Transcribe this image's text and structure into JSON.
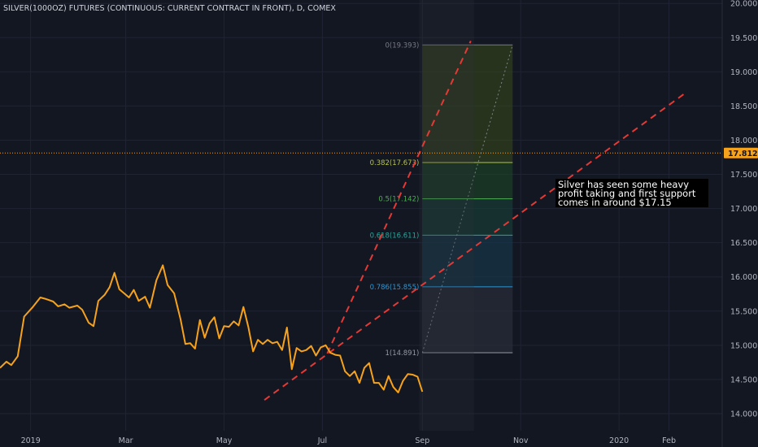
{
  "chart_data": {
    "type": "line",
    "title": "SILVER(1000OZ) FUTURES (CONTINUOUS: CURRENT CONTRACT IN FRONT), D, COMEX",
    "y_ticks": [
      "14.000",
      "14.500",
      "15.000",
      "15.500",
      "16.000",
      "16.500",
      "17.000",
      "17.500",
      "18.000",
      "18.500",
      "19.000",
      "19.500",
      "20.000"
    ],
    "y_tick_values": [
      14.0,
      14.5,
      15.0,
      15.5,
      16.0,
      16.5,
      17.0,
      17.5,
      18.0,
      18.5,
      19.0,
      19.5,
      20.0
    ],
    "ylim": [
      13.75,
      20.05
    ],
    "x_ticks": [
      {
        "label": "2019",
        "x": "2019-01-01"
      },
      {
        "label": "Mar",
        "x": "2019-03-01"
      },
      {
        "label": "May",
        "x": "2019-05-01"
      },
      {
        "label": "Jul",
        "x": "2019-07-01"
      },
      {
        "label": "Sep",
        "x": "2019-09-01"
      },
      {
        "label": "Nov",
        "x": "2019-11-01"
      },
      {
        "label": "2020",
        "x": "2020-01-01"
      },
      {
        "label": "Feb",
        "x": "2020-02-01"
      }
    ],
    "xlim": [
      "2018-12-13",
      "2020-03-05"
    ],
    "current_price": {
      "label": "17.812",
      "value": 17.812
    },
    "series": [
      {
        "color": "#f7a21b",
        "points": [
          [
            "2018-12-13",
            14.67
          ],
          [
            "2018-12-17",
            14.76
          ],
          [
            "2018-12-20",
            14.71
          ],
          [
            "2018-12-24",
            14.84
          ],
          [
            "2018-12-28",
            15.42
          ],
          [
            "2019-01-02",
            15.55
          ],
          [
            "2019-01-07",
            15.7
          ],
          [
            "2019-01-10",
            15.68
          ],
          [
            "2019-01-15",
            15.64
          ],
          [
            "2019-01-18",
            15.57
          ],
          [
            "2019-01-22",
            15.6
          ],
          [
            "2019-01-25",
            15.55
          ],
          [
            "2019-01-30",
            15.58
          ],
          [
            "2019-02-02",
            15.52
          ],
          [
            "2019-02-06",
            15.33
          ],
          [
            "2019-02-09",
            15.28
          ],
          [
            "2019-02-12",
            15.65
          ],
          [
            "2019-02-16",
            15.74
          ],
          [
            "2019-02-19",
            15.85
          ],
          [
            "2019-02-22",
            16.06
          ],
          [
            "2019-02-25",
            15.82
          ],
          [
            "2019-02-28",
            15.76
          ],
          [
            "2019-03-03",
            15.7
          ],
          [
            "2019-03-06",
            15.81
          ],
          [
            "2019-03-09",
            15.65
          ],
          [
            "2019-03-13",
            15.71
          ],
          [
            "2019-03-16",
            15.55
          ],
          [
            "2019-03-20",
            15.95
          ],
          [
            "2019-03-24",
            16.17
          ],
          [
            "2019-03-27",
            15.88
          ],
          [
            "2019-03-31",
            15.76
          ],
          [
            "2019-04-04",
            15.38
          ],
          [
            "2019-04-07",
            15.02
          ],
          [
            "2019-04-10",
            15.03
          ],
          [
            "2019-04-13",
            14.95
          ],
          [
            "2019-04-16",
            15.37
          ],
          [
            "2019-04-19",
            15.11
          ],
          [
            "2019-04-22",
            15.32
          ],
          [
            "2019-04-25",
            15.41
          ],
          [
            "2019-04-28",
            15.1
          ],
          [
            "2019-05-01",
            15.28
          ],
          [
            "2019-05-04",
            15.27
          ],
          [
            "2019-05-07",
            15.35
          ],
          [
            "2019-05-10",
            15.29
          ],
          [
            "2019-05-13",
            15.56
          ],
          [
            "2019-05-16",
            15.27
          ],
          [
            "2019-05-19",
            14.91
          ],
          [
            "2019-05-22",
            15.08
          ],
          [
            "2019-05-25",
            15.02
          ],
          [
            "2019-05-28",
            15.08
          ],
          [
            "2019-05-31",
            15.03
          ],
          [
            "2019-06-03",
            15.05
          ],
          [
            "2019-06-06",
            14.93
          ],
          [
            "2019-06-09",
            15.26
          ],
          [
            "2019-06-12",
            14.65
          ],
          [
            "2019-06-15",
            14.96
          ],
          [
            "2019-06-18",
            14.91
          ],
          [
            "2019-06-21",
            14.93
          ],
          [
            "2019-06-24",
            14.99
          ],
          [
            "2019-06-27",
            14.85
          ],
          [
            "2019-06-30",
            14.97
          ],
          [
            "2019-07-03",
            15.0
          ],
          [
            "2019-07-06",
            14.89
          ],
          [
            "2019-07-09",
            14.86
          ],
          [
            "2019-07-12",
            14.85
          ],
          [
            "2019-07-15",
            14.62
          ],
          [
            "2019-07-18",
            14.55
          ],
          [
            "2019-07-21",
            14.62
          ],
          [
            "2019-07-24",
            14.45
          ],
          [
            "2019-07-27",
            14.67
          ],
          [
            "2019-07-30",
            14.74
          ],
          [
            "2019-08-02",
            14.45
          ],
          [
            "2019-08-05",
            14.45
          ],
          [
            "2019-08-08",
            14.35
          ],
          [
            "2019-08-11",
            14.55
          ],
          [
            "2019-08-14",
            14.39
          ],
          [
            "2019-08-17",
            14.31
          ],
          [
            "2019-08-20",
            14.48
          ],
          [
            "2019-08-23",
            14.58
          ],
          [
            "2019-08-26",
            14.57
          ],
          [
            "2019-08-29",
            14.54
          ],
          [
            "2019-09-01",
            14.32
          ]
        ]
      }
    ]
  },
  "fib": {
    "levels": [
      {
        "label": "0(19.393)",
        "value": 19.393,
        "color": "#787b86"
      },
      {
        "label": "0.382(17.673)",
        "value": 17.673,
        "color": "#b5c34a"
      },
      {
        "label": "0.5(17.142)",
        "value": 17.142,
        "color": "#4caf50"
      },
      {
        "label": "0.618(16.611)",
        "value": 16.611,
        "color": "#26a69a"
      },
      {
        "label": "0.786(15.855)",
        "value": 15.855,
        "color": "#2b96d4"
      },
      {
        "label": "1(14.891)",
        "value": 14.891,
        "color": "#9598a1"
      }
    ]
  },
  "annotation": {
    "lines": [
      "Silver has seen some heavy",
      "profit taking and first support",
      "comes in around $17.15"
    ]
  }
}
